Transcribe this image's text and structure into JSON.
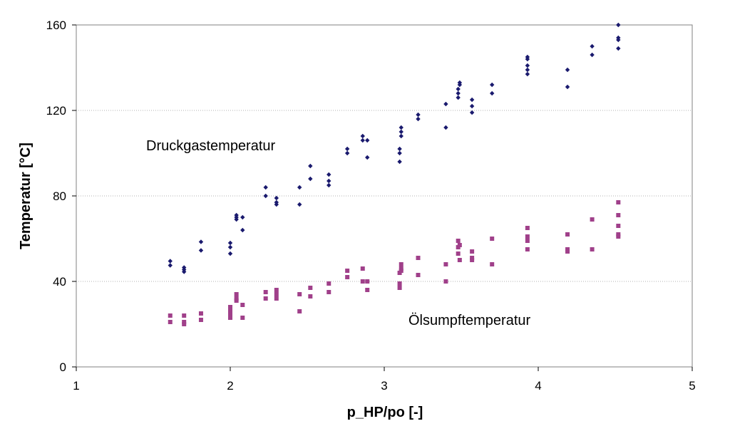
{
  "chart_data": {
    "type": "scatter",
    "xlabel": "p_HP/po [-]",
    "ylabel": "Temperatur [°C]",
    "xlim": [
      1,
      5
    ],
    "ylim": [
      0,
      160
    ],
    "xticks": [
      1,
      2,
      3,
      4,
      5
    ],
    "yticks": [
      0,
      40,
      80,
      120,
      160
    ],
    "grid": "horizontal dotted",
    "annotations": [
      {
        "text": "Druckgastemperatur",
        "x": 2.0,
        "y": 102
      },
      {
        "text": "Ölsumpftemperatur",
        "x": 3.7,
        "y": 21
      }
    ],
    "series": [
      {
        "marker": "diamond",
        "color": "#1a1a6e",
        "points": [
          [
            1.61,
            49.5
          ],
          [
            1.61,
            47.5
          ],
          [
            1.7,
            46.5
          ],
          [
            1.7,
            45.5
          ],
          [
            1.7,
            44.5
          ],
          [
            1.81,
            58.5
          ],
          [
            1.81,
            54.5
          ],
          [
            2.0,
            58
          ],
          [
            2.0,
            56
          ],
          [
            2.0,
            53
          ],
          [
            2.04,
            71
          ],
          [
            2.04,
            70
          ],
          [
            2.04,
            69
          ],
          [
            2.08,
            70
          ],
          [
            2.08,
            64
          ],
          [
            2.23,
            84
          ],
          [
            2.23,
            80
          ],
          [
            2.3,
            79
          ],
          [
            2.3,
            77
          ],
          [
            2.3,
            76
          ],
          [
            2.45,
            84
          ],
          [
            2.45,
            76
          ],
          [
            2.52,
            94
          ],
          [
            2.52,
            88
          ],
          [
            2.64,
            90
          ],
          [
            2.64,
            87
          ],
          [
            2.64,
            85
          ],
          [
            2.76,
            102
          ],
          [
            2.76,
            100
          ],
          [
            2.86,
            108
          ],
          [
            2.86,
            106
          ],
          [
            2.89,
            106
          ],
          [
            2.89,
            98
          ],
          [
            3.1,
            102
          ],
          [
            3.1,
            100
          ],
          [
            3.1,
            96
          ],
          [
            3.11,
            112
          ],
          [
            3.11,
            110
          ],
          [
            3.11,
            108
          ],
          [
            3.22,
            118
          ],
          [
            3.22,
            116
          ],
          [
            3.4,
            123
          ],
          [
            3.4,
            112
          ],
          [
            3.48,
            130
          ],
          [
            3.48,
            128
          ],
          [
            3.48,
            126
          ],
          [
            3.49,
            133
          ],
          [
            3.49,
            132
          ],
          [
            3.57,
            125
          ],
          [
            3.57,
            122
          ],
          [
            3.57,
            119
          ],
          [
            3.7,
            132
          ],
          [
            3.7,
            128
          ],
          [
            3.93,
            145
          ],
          [
            3.93,
            144
          ],
          [
            3.93,
            141
          ],
          [
            3.93,
            139
          ],
          [
            3.93,
            137
          ],
          [
            4.19,
            139
          ],
          [
            4.19,
            131
          ],
          [
            4.35,
            150
          ],
          [
            4.35,
            146
          ],
          [
            4.52,
            160
          ],
          [
            4.52,
            154
          ],
          [
            4.52,
            153
          ],
          [
            4.52,
            149
          ]
        ]
      },
      {
        "marker": "square",
        "color": "#a0408a",
        "points": [
          [
            1.61,
            24
          ],
          [
            1.61,
            21
          ],
          [
            1.7,
            24
          ],
          [
            1.7,
            21
          ],
          [
            1.7,
            20
          ],
          [
            1.81,
            25
          ],
          [
            1.81,
            22
          ],
          [
            2.0,
            28
          ],
          [
            2.0,
            26
          ],
          [
            2.0,
            25
          ],
          [
            2.0,
            23
          ],
          [
            2.04,
            34
          ],
          [
            2.04,
            32
          ],
          [
            2.04,
            31
          ],
          [
            2.08,
            29
          ],
          [
            2.08,
            23
          ],
          [
            2.23,
            35
          ],
          [
            2.23,
            32
          ],
          [
            2.3,
            36
          ],
          [
            2.3,
            34
          ],
          [
            2.3,
            32
          ],
          [
            2.45,
            34
          ],
          [
            2.45,
            26
          ],
          [
            2.52,
            37
          ],
          [
            2.52,
            33
          ],
          [
            2.64,
            39
          ],
          [
            2.64,
            35
          ],
          [
            2.76,
            45
          ],
          [
            2.76,
            42
          ],
          [
            2.86,
            46
          ],
          [
            2.86,
            40
          ],
          [
            2.89,
            40
          ],
          [
            2.89,
            36
          ],
          [
            3.1,
            44
          ],
          [
            3.1,
            39
          ],
          [
            3.1,
            37
          ],
          [
            3.11,
            48
          ],
          [
            3.11,
            46
          ],
          [
            3.11,
            45
          ],
          [
            3.22,
            51
          ],
          [
            3.22,
            43
          ],
          [
            3.4,
            48
          ],
          [
            3.4,
            40
          ],
          [
            3.48,
            59
          ],
          [
            3.48,
            56
          ],
          [
            3.48,
            53
          ],
          [
            3.49,
            57
          ],
          [
            3.49,
            50
          ],
          [
            3.57,
            54
          ],
          [
            3.57,
            51
          ],
          [
            3.57,
            50
          ],
          [
            3.7,
            60
          ],
          [
            3.7,
            48
          ],
          [
            3.93,
            65
          ],
          [
            3.93,
            61
          ],
          [
            3.93,
            59
          ],
          [
            3.93,
            55
          ],
          [
            4.19,
            62
          ],
          [
            4.19,
            55
          ],
          [
            4.19,
            54
          ],
          [
            4.35,
            69
          ],
          [
            4.35,
            55
          ],
          [
            4.52,
            77
          ],
          [
            4.52,
            71
          ],
          [
            4.52,
            66
          ],
          [
            4.52,
            62
          ],
          [
            4.52,
            61
          ]
        ]
      }
    ]
  }
}
